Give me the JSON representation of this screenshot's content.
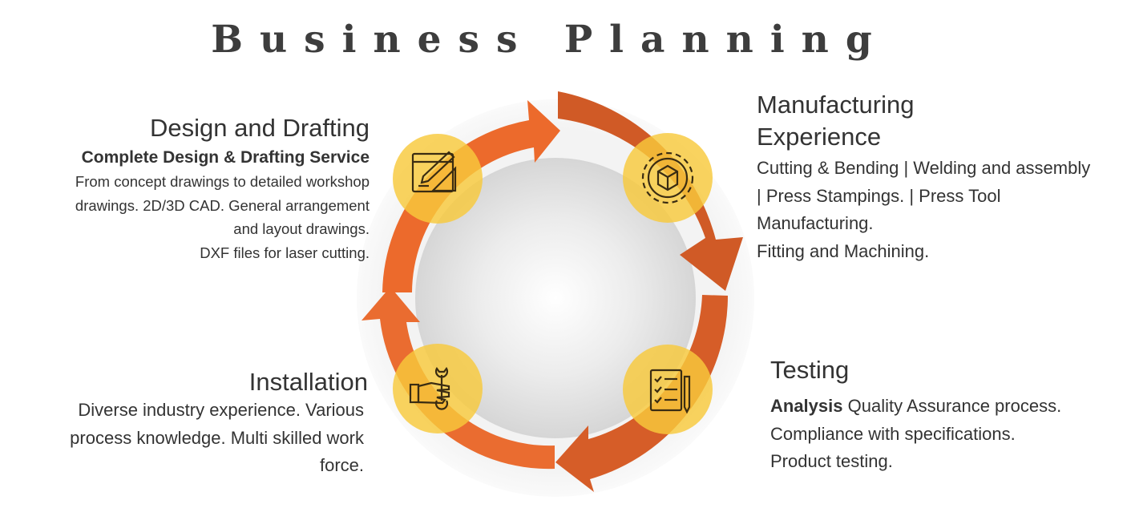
{
  "title": "Business Planning",
  "colors": {
    "arrow": "#e8672e",
    "arrow_dark": "#c85323",
    "node": "#f8c93c",
    "icon": "#3a2c12"
  },
  "nodes": [
    {
      "id": "design",
      "icon": "drafting-tools-icon",
      "heading": "Design and Drafting",
      "subheading": "Complete Design & Drafting Service",
      "lines": [
        "From concept drawings to detailed workshop",
        "drawings. 2D/3D CAD. General arrangement",
        "and layout drawings.",
        "DXF files for laser cutting."
      ]
    },
    {
      "id": "manufacturing",
      "icon": "gear-box-icon",
      "heading_lines": [
        "Manufacturing",
        "Experience"
      ],
      "lines": [
        "Cutting & Bending | Welding and assembly",
        "| Press Stampings. | Press Tool",
        "Manufacturing.",
        "Fitting and Machining."
      ]
    },
    {
      "id": "testing",
      "icon": "checklist-icon",
      "heading": "Testing",
      "bold_lead": "Analysis",
      "lines": [
        "Quality Assurance process.",
        "Compliance with specifications.",
        "Product testing."
      ]
    },
    {
      "id": "installation",
      "icon": "wrench-hand-icon",
      "heading": "Installation",
      "lines": [
        "Diverse industry experience. Various",
        "process knowledge. Multi skilled work",
        "force."
      ]
    }
  ]
}
